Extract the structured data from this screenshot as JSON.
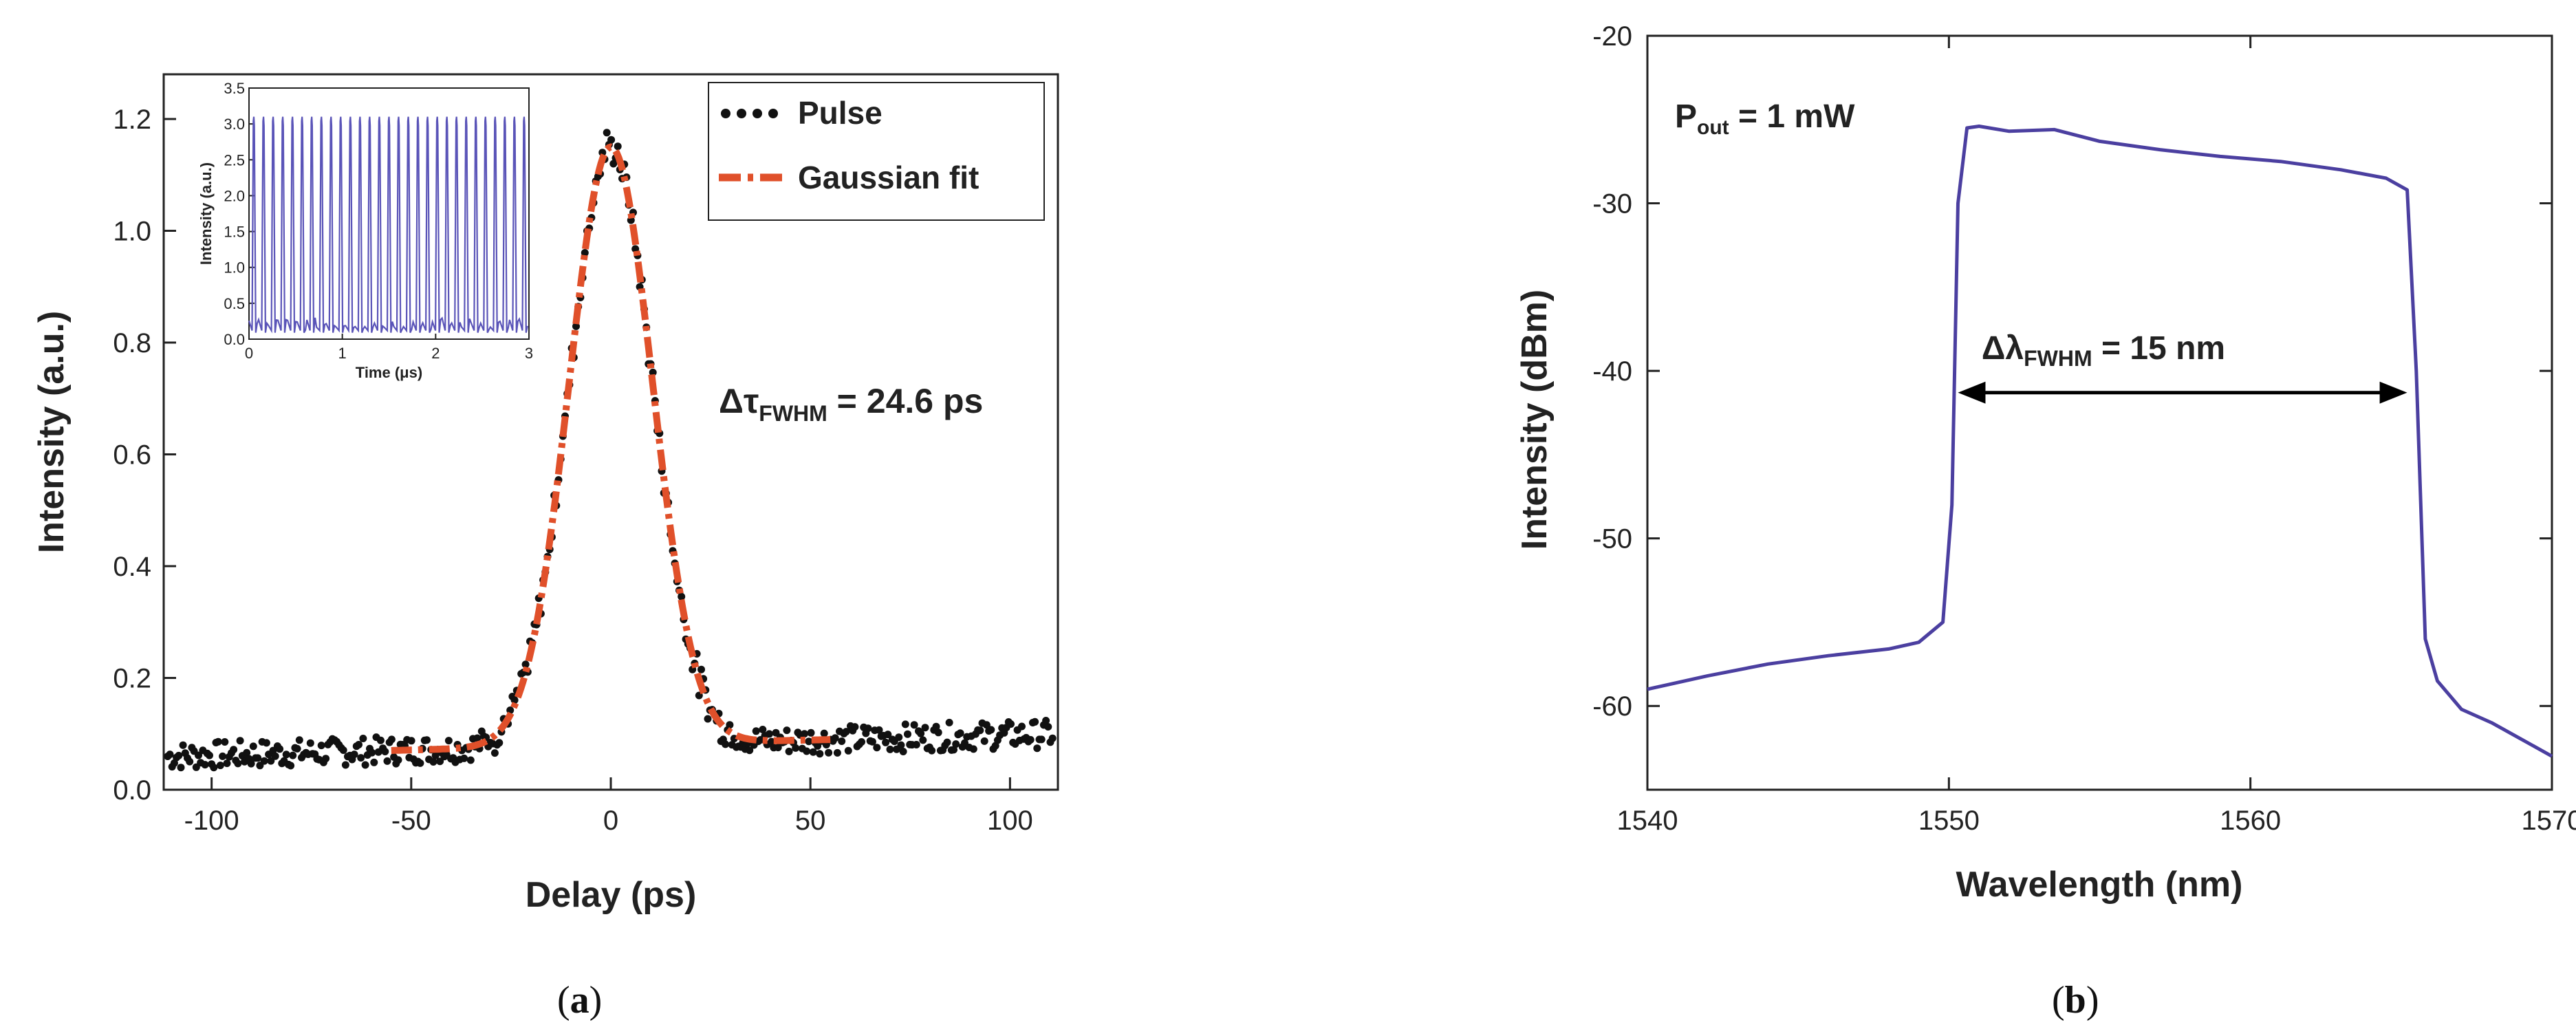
{
  "panel_a": {
    "caption_open": "(",
    "caption_letter": "a",
    "caption_close": ")",
    "annotation_prefix": "Δτ",
    "annotation_sub": "FWHM",
    "annotation_value": " = 24.6 ps"
  },
  "panel_b": {
    "caption_open": "(",
    "caption_letter": "b",
    "caption_close": ")",
    "annotation_prefix": "P",
    "annotation_sub": "out",
    "annotation_value": " = 1 mW",
    "fwhm_prefix": "Δλ",
    "fwhm_sub": "FWHM",
    "fwhm_value": " = 15 nm"
  },
  "colors": {
    "pulse": "#111111",
    "fit": "#e0502a",
    "spectrum": "#4b3fa0",
    "inset_trace": "#5a54b8"
  },
  "chart_data": [
    {
      "type": "scatter",
      "xlabel": "Delay (ps)",
      "ylabel": "Intensity (a.u.)",
      "xlim": [
        -112,
        112
      ],
      "ylim": [
        0,
        1.28
      ],
      "xticks": [
        -100,
        -50,
        0,
        50,
        100
      ],
      "xtick_labels": [
        "-100",
        "-50",
        "0",
        "50",
        "100"
      ],
      "yticks": [
        0,
        0.2,
        0.4,
        0.6,
        0.8,
        1.0,
        1.2
      ],
      "ytick_labels": [
        "0.0",
        "0.2",
        "0.4",
        "0.6",
        "0.8",
        "1.0",
        "1.2"
      ],
      "legend_position": "top-right",
      "series": [
        {
          "name": "Pulse",
          "kind": "scatter",
          "peak": 1.15,
          "center": 0,
          "fwhm": 24.6,
          "baseline_left": 0.06,
          "baseline_right": 0.1
        },
        {
          "name": "Gaussian fit",
          "kind": "dash-dot line",
          "peak": 1.15,
          "center": 0,
          "fwhm": 24.6,
          "x_range": [
            -55,
            55
          ]
        }
      ]
    },
    {
      "type": "line",
      "title": "inset",
      "xlabel": "Time (μs)",
      "ylabel": "Intensity (a.u.)",
      "xlim": [
        0,
        3
      ],
      "ylim": [
        0,
        3.5
      ],
      "xticks": [
        0,
        1,
        2,
        3
      ],
      "xtick_labels": [
        "0",
        "1",
        "2",
        "3"
      ],
      "yticks": [
        0,
        0.5,
        1.0,
        1.5,
        2.0,
        2.5,
        3.0,
        3.5
      ],
      "ytick_labels": [
        "0.0",
        "0.5",
        "1.0",
        "1.5",
        "2.0",
        "2.5",
        "3.0",
        "3.5"
      ],
      "series": [
        {
          "name": "pulse train",
          "pulse_count": 29,
          "peak": 3.1,
          "floor": 0.3
        }
      ]
    },
    {
      "type": "line",
      "xlabel": "Wavelength (nm)",
      "ylabel": "Intensity (dBm)",
      "xlim": [
        1540,
        1570
      ],
      "ylim": [
        -65,
        -20
      ],
      "xticks": [
        1540,
        1550,
        1560,
        1570
      ],
      "xtick_labels": [
        "1540",
        "1550",
        "1560",
        "1570"
      ],
      "yticks": [
        -60,
        -50,
        -40,
        -30,
        -20
      ],
      "ytick_labels": [
        "-60",
        "-50",
        "-40",
        "-30",
        "-20"
      ],
      "series": [
        {
          "name": "spectrum",
          "x": [
            1540,
            1542,
            1544,
            1546,
            1548,
            1549,
            1549.8,
            1550.1,
            1550.3,
            1550.6,
            1551,
            1552,
            1553.5,
            1555,
            1557,
            1559,
            1561,
            1563,
            1564.5,
            1565.2,
            1565.5,
            1565.8,
            1566.2,
            1567,
            1568,
            1569,
            1570
          ],
          "y": [
            -59.0,
            -58.2,
            -57.5,
            -57.0,
            -56.6,
            -56.2,
            -55.0,
            -48.0,
            -30.0,
            -25.5,
            -25.4,
            -25.7,
            -25.6,
            -26.3,
            -26.8,
            -27.2,
            -27.5,
            -28.0,
            -28.5,
            -29.2,
            -40.0,
            -56.0,
            -58.5,
            -60.2,
            -61.0,
            -62.0,
            -63.0
          ]
        }
      ],
      "fwhm_arrow": {
        "x_from": 1550.3,
        "x_to": 1565.2,
        "y": -41.3,
        "label": "ΔλFWHM = 15 nm"
      }
    }
  ]
}
